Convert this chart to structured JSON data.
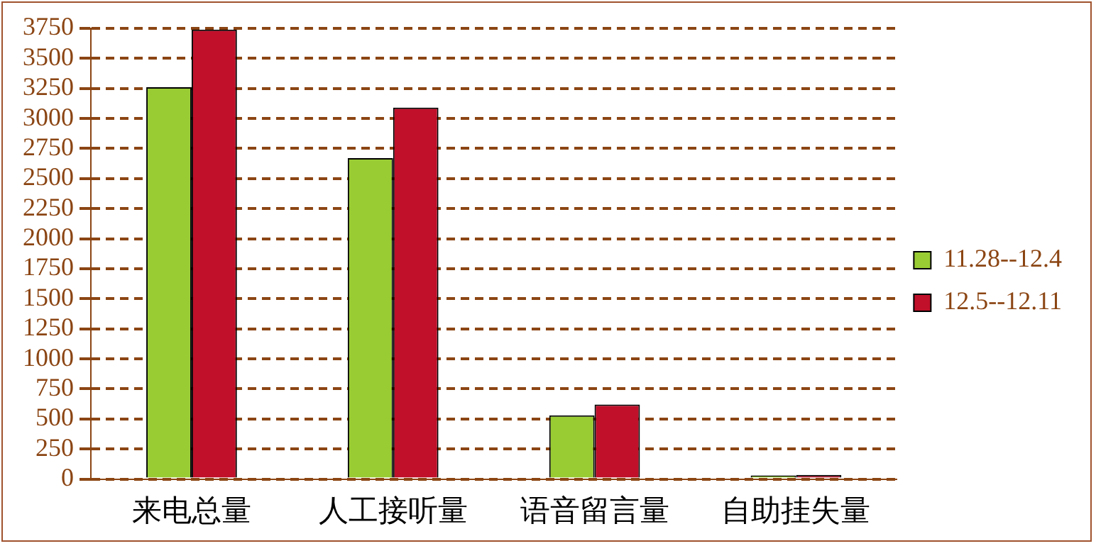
{
  "chart_data": {
    "type": "bar",
    "categories": [
      "来电总量",
      "人工接听量",
      "语音留言量",
      "自助挂失量"
    ],
    "series": [
      {
        "name": "11.28--12.4",
        "color": "#99cc33",
        "values": [
          3260,
          2670,
          530,
          30
        ]
      },
      {
        "name": "12.5--12.11",
        "color": "#c0102a",
        "values": [
          3740,
          3090,
          620,
          35
        ]
      }
    ],
    "ylim": [
      0,
      3750
    ],
    "yticks": [
      0,
      250,
      500,
      750,
      1000,
      1250,
      1500,
      1750,
      2000,
      2250,
      2500,
      2750,
      3000,
      3250,
      3500,
      3750
    ],
    "grid": "y",
    "legend": "right"
  }
}
